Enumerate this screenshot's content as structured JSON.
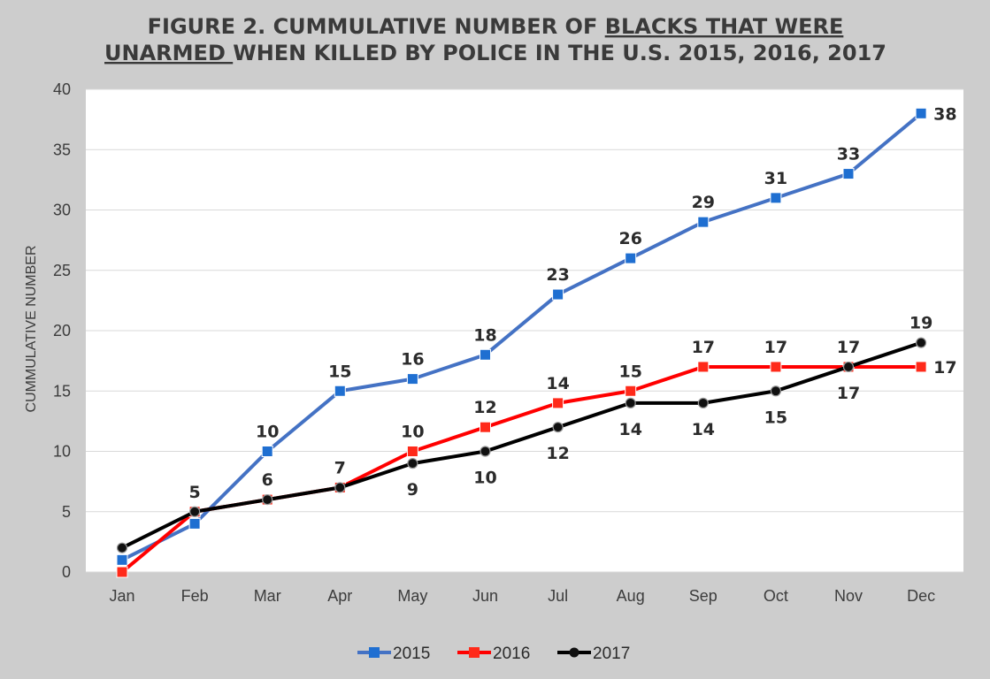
{
  "chart_data": {
    "type": "line",
    "title_parts": {
      "line1_a": "FIGURE 2. CUMMULATIVE NUMBER OF ",
      "line1_b": "BLACKS THAT WERE",
      "line2_a": "UNARMED ",
      "line2_b": "WHEN KILLED BY POLICE IN THE U.S. 2015, 2016, 2017"
    },
    "ylabel": "CUMMULATIVE NUMBER",
    "xlabel": "",
    "ylim": [
      0,
      40
    ],
    "yticks": [
      0,
      5,
      10,
      15,
      20,
      25,
      30,
      35,
      40
    ],
    "grid": true,
    "legend_position": "bottom",
    "categories": [
      "Jan",
      "Feb",
      "Mar",
      "Apr",
      "May",
      "Jun",
      "Jul",
      "Aug",
      "Sep",
      "Oct",
      "Nov",
      "Dec"
    ],
    "series": [
      {
        "name": "2015",
        "color": "#4472c4",
        "marker_color": "#1f6fd1",
        "marker": "square",
        "values": [
          1,
          4,
          10,
          15,
          16,
          18,
          23,
          26,
          29,
          31,
          33,
          38
        ],
        "labels": [
          "",
          "",
          "10",
          "15",
          "16",
          "18",
          "23",
          "26",
          "29",
          "31",
          "33",
          "38"
        ],
        "label_pos": [
          "above",
          "above",
          "above",
          "above",
          "above",
          "above",
          "above",
          "above",
          "above",
          "above",
          "above",
          "right"
        ]
      },
      {
        "name": "2016",
        "color": "#ff0000",
        "marker_color": "#ff2a1a",
        "marker": "square",
        "values": [
          0,
          5,
          6,
          7,
          10,
          12,
          14,
          15,
          17,
          17,
          17,
          17
        ],
        "labels": [
          "",
          "5",
          "",
          "7",
          "10",
          "12",
          "14",
          "15",
          "17",
          "17",
          "17",
          "17"
        ],
        "label_pos": [
          "above",
          "above",
          "above",
          "above",
          "above",
          "above",
          "above",
          "above",
          "above",
          "above",
          "above",
          "right"
        ]
      },
      {
        "name": "2017",
        "color": "#000000",
        "marker_color": "#111111",
        "marker": "circle",
        "values": [
          2,
          5,
          6,
          7,
          9,
          10,
          12,
          14,
          14,
          15,
          17,
          19
        ],
        "labels": [
          "",
          "",
          "6",
          "",
          "9",
          "10",
          "12",
          "14",
          "14",
          "15",
          "17",
          "19"
        ],
        "label_pos": [
          "above",
          "above",
          "above",
          "above",
          "below",
          "below",
          "below",
          "below",
          "below",
          "below",
          "below",
          "above"
        ]
      }
    ]
  }
}
